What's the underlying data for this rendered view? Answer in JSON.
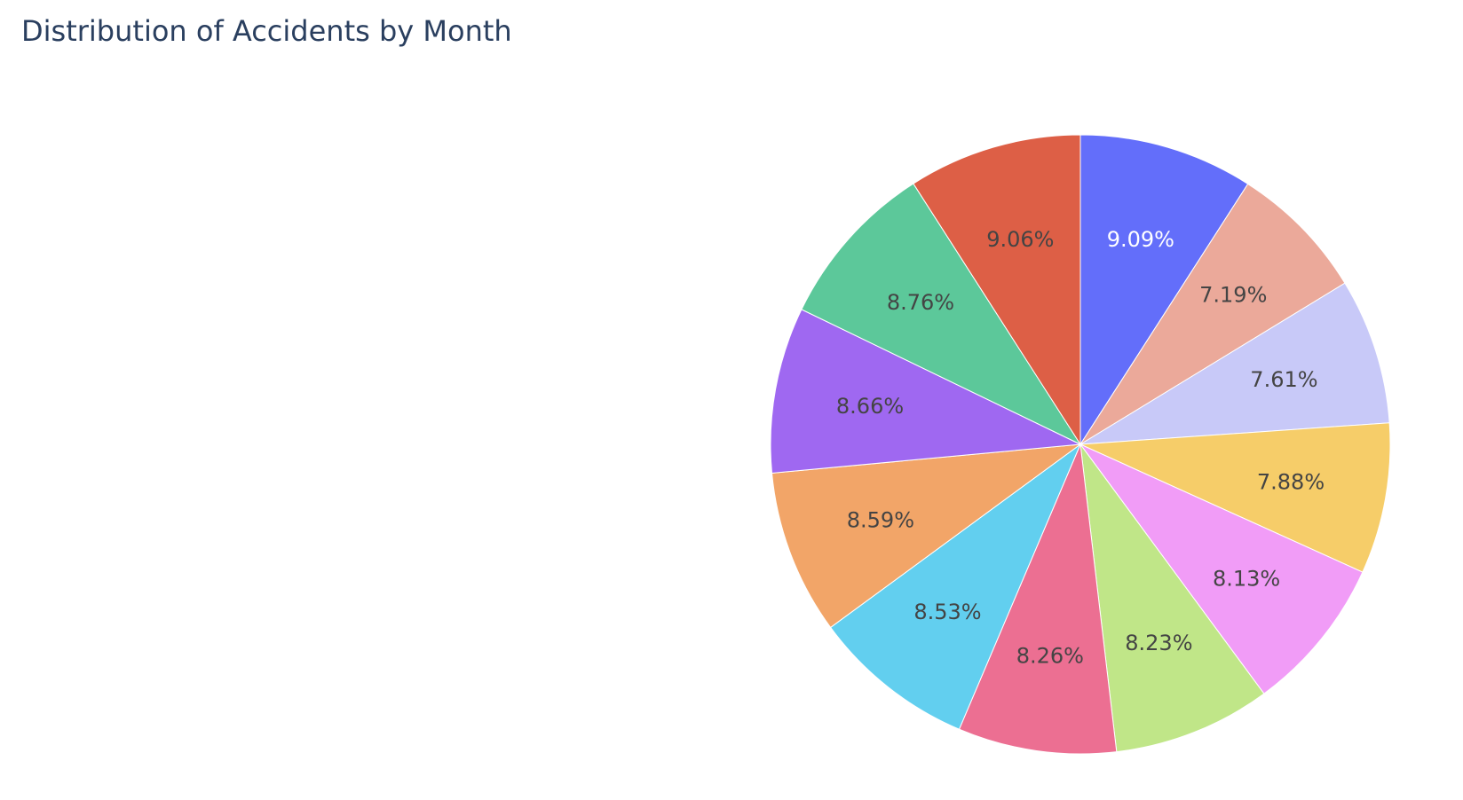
{
  "chart_data": {
    "type": "pie",
    "title": "Distribution of Accidents by Month",
    "direction": "clockwise",
    "start": "12 o'clock",
    "labels_shown": "percent",
    "slices": [
      {
        "value": 9.09,
        "label": "9.09%",
        "color": "#636efa",
        "text_color": "#ffffff"
      },
      {
        "value": 7.19,
        "label": "7.19%",
        "color": "#eba99a",
        "text_color": "#444444"
      },
      {
        "value": 7.61,
        "label": "7.61%",
        "color": "#c8c9f8",
        "text_color": "#444444"
      },
      {
        "value": 7.88,
        "label": "7.88%",
        "color": "#f6cd69",
        "text_color": "#444444"
      },
      {
        "value": 8.13,
        "label": "8.13%",
        "color": "#f19cf7",
        "text_color": "#444444"
      },
      {
        "value": 8.23,
        "label": "8.23%",
        "color": "#c0e688",
        "text_color": "#444444"
      },
      {
        "value": 8.26,
        "label": "8.26%",
        "color": "#ec6f92",
        "text_color": "#444444"
      },
      {
        "value": 8.53,
        "label": "8.53%",
        "color": "#62cfef",
        "text_color": "#444444"
      },
      {
        "value": 8.59,
        "label": "8.59%",
        "color": "#f2a568",
        "text_color": "#444444"
      },
      {
        "value": 8.66,
        "label": "8.66%",
        "color": "#9f68f1",
        "text_color": "#444444"
      },
      {
        "value": 8.76,
        "label": "8.76%",
        "color": "#5cc89a",
        "text_color": "#444444"
      },
      {
        "value": 9.06,
        "label": "9.06%",
        "color": "#dd5f46",
        "text_color": "#444444"
      }
    ]
  }
}
